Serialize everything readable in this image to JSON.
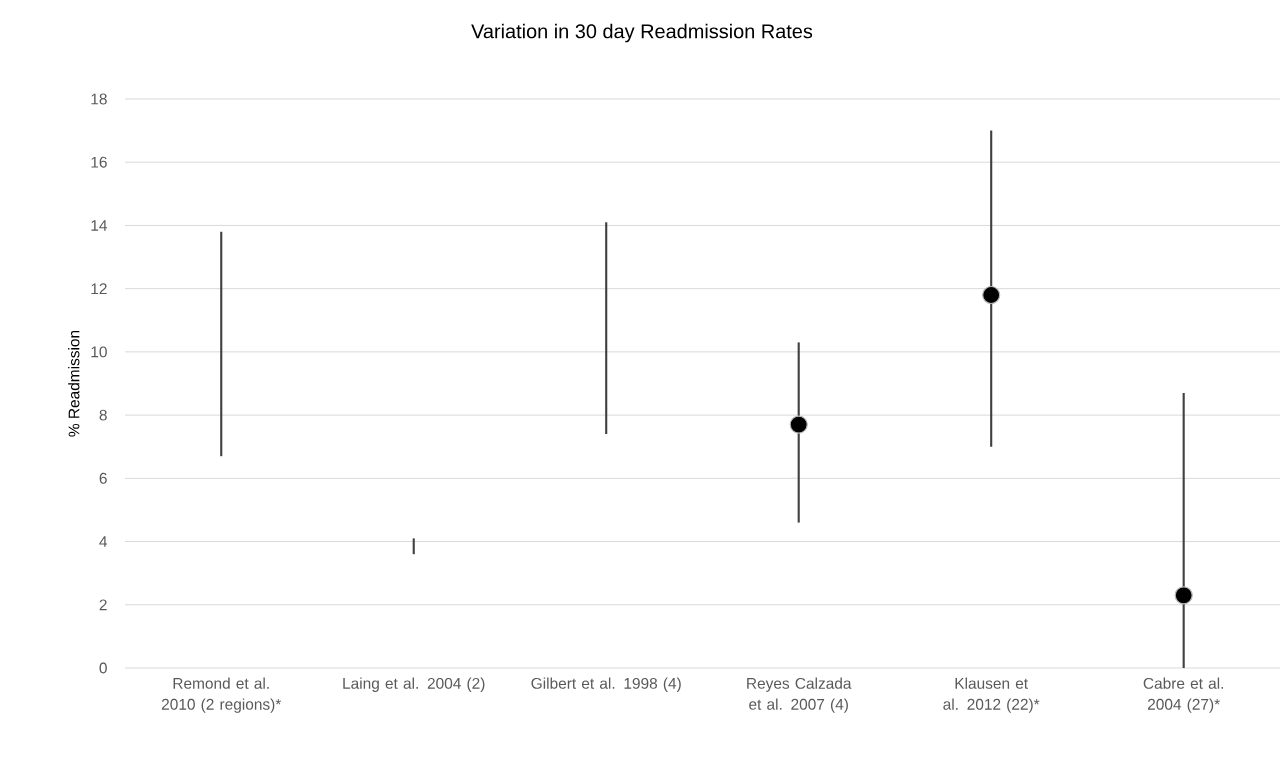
{
  "chart_data": {
    "type": "bar",
    "title": "Variation in 30 day Readmission Rates",
    "ylabel": "% Readmission",
    "categories": [
      "Remond et al. 2010 (2 regions)*",
      "Laing et al. 2004 (2)",
      "Gilbert et al. 1998 (4)",
      "Reyes Calzada et al. 2007 (4)",
      "Klausen et al. 2012 (22)*",
      "Cabre et al. 2004 (27)*"
    ],
    "series": [
      {
        "color": "#404040",
        "base": [
          6.7,
          3.6,
          7.4,
          4.6,
          7.0,
          0
        ],
        "values": [
          7.1,
          0.5,
          6.7,
          5.7,
          10.0,
          8.7
        ]
      },
      {
        "type": "scatter",
        "color": "#000000",
        "marker": "circle",
        "values": [
          null,
          null,
          null,
          7.7,
          11.8,
          2.3
        ]
      }
    ],
    "ylim": [
      0,
      18
    ],
    "yticks": [
      0,
      2,
      4,
      6,
      8,
      10,
      12,
      14,
      16,
      18
    ],
    "grid": "y"
  }
}
